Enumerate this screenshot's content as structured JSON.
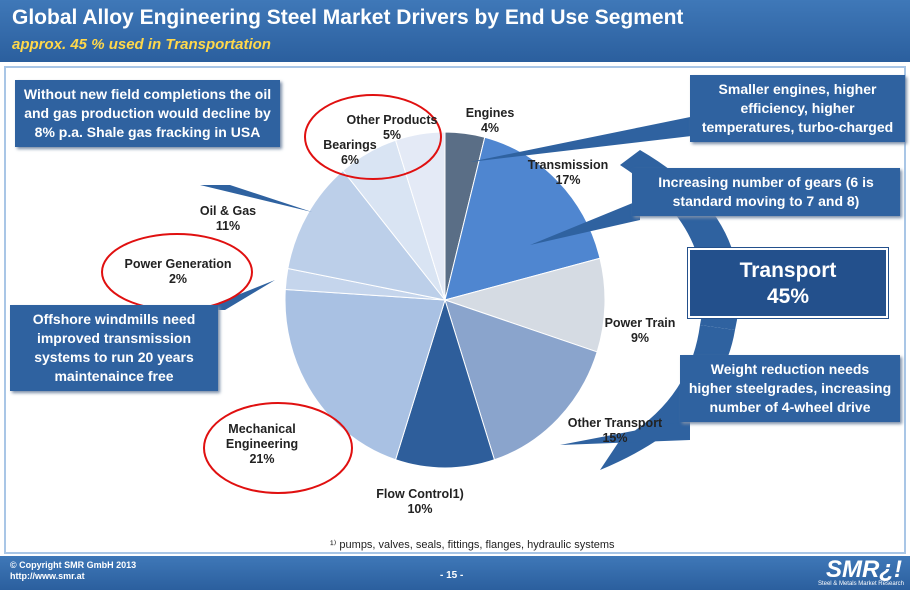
{
  "header": {
    "title": "Global Alloy Engineering Steel Market Drivers by End Use Segment",
    "subtitle": "approx. 45 % used in Transportation"
  },
  "chart_data": {
    "type": "pie",
    "categories": [
      "Engines",
      "Transmission",
      "Power Train",
      "Other Transport",
      "Flow Control1)",
      "Mechanical Engineering",
      "Power Generation",
      "Oil & Gas",
      "Bearings",
      "Other Products"
    ],
    "values": [
      4,
      17,
      9,
      15,
      10,
      21,
      2,
      11,
      6,
      5
    ],
    "value_labels": [
      "4%",
      "17%",
      "9%",
      "15%",
      "10%",
      "21%",
      "2%",
      "11%",
      "6%",
      "5%"
    ],
    "colors": [
      "#5a6e86",
      "#4f86d0",
      "#d5dbe3",
      "#8aa4cc",
      "#2e5e9b",
      "#a9c1e3",
      "#c5d5ec",
      "#bccfe9",
      "#d9e4f3",
      "#e4eaf6"
    ]
  },
  "callouts": [
    "Without new field completions the oil and gas production would decline by 8% p.a. Shale gas fracking in USA",
    "Offshore windmills need improved transmission systems to run 20 years maintenaince free",
    "Smaller engines, higher efficiency, higher temperatures, turbo-charged",
    "Increasing number of gears (6 is standard moving to 7 and 8)",
    "Weight reduction needs higher steelgrades, increasing number of 4-wheel drive"
  ],
  "transport": {
    "label": "Transport",
    "value": "45%"
  },
  "footnote": "¹⁾ pumps, valves, seals, fittings, flanges, hydraulic systems",
  "footer": {
    "copyright": "© Copyright SMR GmbH 2013",
    "url": "http://www.smr.at",
    "page": "- 15 -",
    "logo": "SMR¿!",
    "logo_subtitle": "Steel & Metals Market Research"
  }
}
